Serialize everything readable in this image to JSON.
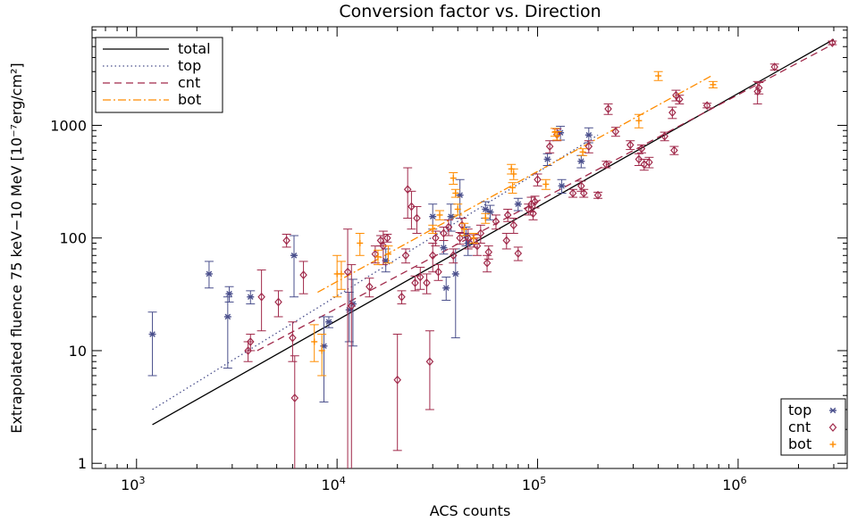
{
  "chart_data": {
    "type": "scatter",
    "title": "Conversion factor vs. Direction",
    "xlabel": "ACS counts",
    "ylabel": "Extrapolated fluence 75 keV−10 MeV [10⁻⁷erg/cm²]",
    "x_scale": "log",
    "y_scale": "log",
    "xlim": [
      600,
      3500000
    ],
    "ylim": [
      0.9,
      7500
    ],
    "x_ticks": [
      {
        "value": 1000,
        "base": "10",
        "exp": "3"
      },
      {
        "value": 10000,
        "base": "10",
        "exp": "4"
      },
      {
        "value": 100000,
        "base": "10",
        "exp": "5"
      },
      {
        "value": 1000000,
        "base": "10",
        "exp": "6"
      }
    ],
    "y_ticks": [
      {
        "value": 1,
        "label": "1"
      },
      {
        "value": 10,
        "label": "10"
      },
      {
        "value": 100,
        "label": "100"
      },
      {
        "value": 1000,
        "label": "1000"
      }
    ],
    "line_legend": [
      {
        "name": "total",
        "color": "#000000",
        "dash": "solid"
      },
      {
        "name": "top",
        "color": "#4a4f8c",
        "dash": "dotted"
      },
      {
        "name": "cnt",
        "color": "#a0294a",
        "dash": "dashed"
      },
      {
        "name": "bot",
        "color": "#ff8c00",
        "dash": "dashdot"
      }
    ],
    "marker_legend": [
      {
        "name": "top",
        "color": "#4a4f8c",
        "marker": "asterisk"
      },
      {
        "name": "cnt",
        "color": "#a0294a",
        "marker": "diamond"
      },
      {
        "name": "bot",
        "color": "#ff8c00",
        "marker": "plus"
      }
    ],
    "fit_lines": [
      {
        "name": "total",
        "x": [
          1200,
          3000000
        ],
        "y": [
          2.2,
          5800
        ]
      },
      {
        "name": "top",
        "x": [
          1200,
          200000
        ],
        "y": [
          3.0,
          820
        ]
      },
      {
        "name": "cnt",
        "x": [
          4000,
          3000000
        ],
        "y": [
          10,
          5300
        ]
      },
      {
        "name": "bot",
        "x": [
          8000,
          750000
        ],
        "y": [
          33,
          2800
        ]
      }
    ],
    "series": [
      {
        "name": "top",
        "color": "#4a4f8c",
        "marker": "asterisk",
        "points": [
          [
            1200,
            14,
            6,
            22
          ],
          [
            2300,
            48,
            36,
            62
          ],
          [
            2900,
            32,
            27,
            37
          ],
          [
            2850,
            20,
            7,
            30
          ],
          [
            3700,
            30,
            26,
            34
          ],
          [
            6100,
            70,
            30,
            105
          ],
          [
            8600,
            11,
            3.5,
            20
          ],
          [
            9100,
            18,
            16,
            20
          ],
          [
            12000,
            26,
            11,
            43
          ],
          [
            11500,
            23,
            12,
            33
          ],
          [
            17500,
            63,
            50,
            80
          ],
          [
            30000,
            155,
            120,
            200
          ],
          [
            34000,
            82,
            72,
            95
          ],
          [
            35000,
            36,
            28,
            45
          ],
          [
            37000,
            155,
            115,
            200
          ],
          [
            39000,
            48,
            13,
            80
          ],
          [
            41000,
            240,
            150,
            330
          ],
          [
            44000,
            105,
            85,
            125
          ],
          [
            45000,
            90,
            70,
            110
          ],
          [
            55000,
            180,
            150,
            210
          ],
          [
            58000,
            170,
            145,
            195
          ],
          [
            80000,
            200,
            175,
            225
          ],
          [
            112000,
            500,
            440,
            560
          ],
          [
            130000,
            860,
            740,
            980
          ],
          [
            132000,
            290,
            250,
            330
          ],
          [
            165000,
            480,
            420,
            540
          ],
          [
            180000,
            820,
            700,
            950
          ]
        ]
      },
      {
        "name": "cnt",
        "color": "#a0294a",
        "marker": "diamond",
        "points": [
          [
            3600,
            10,
            8,
            12
          ],
          [
            3700,
            12,
            10,
            14
          ],
          [
            4200,
            30,
            15,
            52
          ],
          [
            5100,
            27,
            20,
            34
          ],
          [
            5600,
            95,
            83,
            108
          ],
          [
            6000,
            13,
            8,
            18
          ],
          [
            6150,
            3.8,
            0.2,
            9
          ],
          [
            6800,
            47,
            32,
            62
          ],
          [
            11300,
            50,
            0.5,
            120
          ],
          [
            11800,
            25,
            0.5,
            58
          ],
          [
            14500,
            37,
            30,
            44
          ],
          [
            15500,
            72,
            60,
            85
          ],
          [
            16500,
            95,
            85,
            105
          ],
          [
            17000,
            85,
            58,
            115
          ],
          [
            17800,
            100,
            92,
            108
          ],
          [
            20000,
            5.5,
            1.3,
            14
          ],
          [
            21000,
            30,
            26,
            34
          ],
          [
            22000,
            70,
            60,
            80
          ],
          [
            22500,
            270,
            150,
            420
          ],
          [
            23500,
            190,
            120,
            260
          ],
          [
            24500,
            40,
            34,
            46
          ],
          [
            25000,
            150,
            110,
            190
          ],
          [
            26000,
            45,
            35,
            55
          ],
          [
            28000,
            40,
            32,
            48
          ],
          [
            29000,
            8,
            3,
            15
          ],
          [
            30000,
            70,
            50,
            90
          ],
          [
            31000,
            100,
            85,
            115
          ],
          [
            32000,
            50,
            42,
            58
          ],
          [
            34000,
            110,
            95,
            125
          ],
          [
            36000,
            125,
            105,
            145
          ],
          [
            38000,
            70,
            60,
            80
          ],
          [
            41000,
            100,
            88,
            112
          ],
          [
            42000,
            130,
            110,
            150
          ],
          [
            45000,
            100,
            80,
            120
          ],
          [
            48000,
            95,
            83,
            107
          ],
          [
            50000,
            85,
            70,
            100
          ],
          [
            52000,
            110,
            90,
            130
          ],
          [
            56000,
            60,
            50,
            70
          ],
          [
            57000,
            75,
            65,
            85
          ],
          [
            62000,
            140,
            120,
            160
          ],
          [
            70000,
            95,
            80,
            110
          ],
          [
            71000,
            160,
            140,
            180
          ],
          [
            76000,
            130,
            110,
            150
          ],
          [
            80000,
            73,
            63,
            83
          ],
          [
            90000,
            180,
            160,
            200
          ],
          [
            93000,
            200,
            170,
            230
          ],
          [
            95000,
            165,
            145,
            185
          ],
          [
            97000,
            210,
            185,
            235
          ],
          [
            100000,
            330,
            290,
            370
          ],
          [
            115000,
            650,
            570,
            730
          ],
          [
            125000,
            830,
            730,
            930
          ],
          [
            150000,
            250,
            230,
            270
          ],
          [
            165000,
            290,
            260,
            320
          ],
          [
            170000,
            250,
            230,
            270
          ],
          [
            180000,
            650,
            570,
            730
          ],
          [
            200000,
            240,
            225,
            255
          ],
          [
            220000,
            450,
            420,
            480
          ],
          [
            225000,
            1400,
            1250,
            1550
          ],
          [
            245000,
            880,
            800,
            960
          ],
          [
            290000,
            670,
            610,
            730
          ],
          [
            320000,
            500,
            440,
            560
          ],
          [
            330000,
            620,
            570,
            670
          ],
          [
            340000,
            450,
            400,
            500
          ],
          [
            360000,
            470,
            420,
            520
          ],
          [
            430000,
            800,
            730,
            870
          ],
          [
            470000,
            1300,
            1150,
            1450
          ],
          [
            480000,
            600,
            550,
            650
          ],
          [
            490000,
            1850,
            1650,
            2050
          ],
          [
            510000,
            1700,
            1550,
            1850
          ],
          [
            700000,
            1500,
            1430,
            1570
          ],
          [
            1250000,
            2000,
            1550,
            2450
          ],
          [
            1270000,
            2150,
            1900,
            2400
          ],
          [
            1520000,
            3300,
            3100,
            3500
          ],
          [
            2950000,
            5400,
            5200,
            5600
          ]
        ]
      },
      {
        "name": "bot",
        "color": "#ff8c00",
        "marker": "plus",
        "points": [
          [
            7700,
            12,
            8,
            17
          ],
          [
            8400,
            10,
            6,
            14
          ],
          [
            10000,
            48,
            30,
            70
          ],
          [
            10500,
            48,
            35,
            62
          ],
          [
            13000,
            90,
            70,
            110
          ],
          [
            16000,
            68,
            58,
            78
          ],
          [
            18000,
            72,
            60,
            85
          ],
          [
            30000,
            120,
            110,
            130
          ],
          [
            32500,
            160,
            145,
            175
          ],
          [
            38000,
            340,
            300,
            380
          ],
          [
            39000,
            250,
            230,
            270
          ],
          [
            40000,
            180,
            160,
            200
          ],
          [
            43000,
            120,
            105,
            135
          ],
          [
            48000,
            100,
            90,
            110
          ],
          [
            55000,
            150,
            135,
            165
          ],
          [
            74000,
            410,
            370,
            450
          ],
          [
            75000,
            280,
            250,
            310
          ],
          [
            76000,
            370,
            330,
            410
          ],
          [
            110000,
            300,
            270,
            330
          ],
          [
            122000,
            870,
            800,
            940
          ],
          [
            125000,
            810,
            740,
            880
          ],
          [
            168000,
            580,
            540,
            620
          ],
          [
            320000,
            1100,
            950,
            1250
          ],
          [
            400000,
            2750,
            2500,
            3000
          ],
          [
            750000,
            2300,
            2150,
            2450
          ]
        ]
      }
    ]
  }
}
